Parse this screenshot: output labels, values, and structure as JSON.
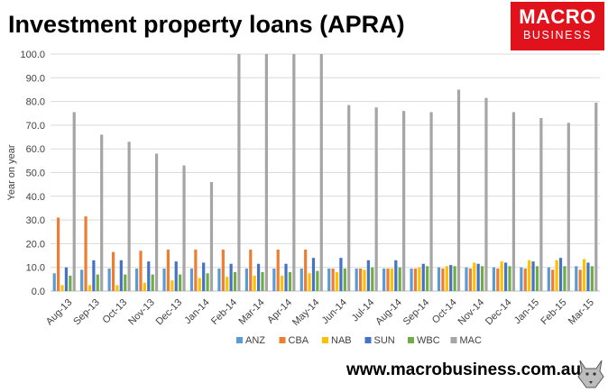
{
  "header": {
    "title": "Investment property loans (APRA)",
    "logo_top": "MACRO",
    "logo_bottom": "BUSINESS",
    "url": "www.macrobusiness.com.au"
  },
  "chart_data": {
    "type": "bar",
    "title": "Investment property loans (APRA)",
    "xlabel": "",
    "ylabel": "Year on year",
    "ylim": [
      0,
      100
    ],
    "ytick_labels": [
      "0.0",
      "10.0",
      "20.0",
      "30.0",
      "40.0",
      "50.0",
      "60.0",
      "70.0",
      "80.0",
      "90.0",
      "100.0"
    ],
    "grid": true,
    "legend_position": "bottom",
    "categories": [
      "Aug-13",
      "Sep-13",
      "Oct-13",
      "Nov-13",
      "Dec-13",
      "Jan-14",
      "Feb-14",
      "Mar-14",
      "Apr-14",
      "May-14",
      "Jun-14",
      "Jul-14",
      "Aug-14",
      "Sep-14",
      "Oct-14",
      "Nov-14",
      "Dec-14",
      "Jan-15",
      "Feb-15",
      "Mar-15"
    ],
    "series": [
      {
        "name": "ANZ",
        "color": "#5b9bd5",
        "values": [
          7.5,
          9,
          9.5,
          9.5,
          9.5,
          9.5,
          9.5,
          9.5,
          9.5,
          9.5,
          9.5,
          9.5,
          9.5,
          9.5,
          10,
          10,
          10,
          10,
          10,
          10.5
        ]
      },
      {
        "name": "CBA",
        "color": "#ed7d31",
        "values": [
          31,
          31.5,
          16.5,
          17,
          17.5,
          17.5,
          17.5,
          17.5,
          17.5,
          17.5,
          9.5,
          9.5,
          9.5,
          9.5,
          9.5,
          9.5,
          9.5,
          9.5,
          9,
          9
        ]
      },
      {
        "name": "NAB",
        "color": "#ffc000",
        "values": [
          2.5,
          2.5,
          2.5,
          3.5,
          4.5,
          5.5,
          6,
          6.5,
          6.5,
          7.5,
          8,
          9,
          9.5,
          10,
          10.5,
          12,
          12.5,
          13,
          13,
          13.5
        ]
      },
      {
        "name": "SUN",
        "color": "#4472c4",
        "values": [
          10,
          13,
          13,
          12.5,
          12.5,
          12,
          11.5,
          11.5,
          11.5,
          14,
          14,
          13,
          13,
          11.5,
          11,
          11.5,
          12,
          12.5,
          14,
          12
        ]
      },
      {
        "name": "WBC",
        "color": "#70ad47",
        "values": [
          6.5,
          7,
          7,
          7,
          7,
          7.5,
          8,
          8,
          8,
          8.5,
          9.5,
          10,
          10,
          10.5,
          10.5,
          10.5,
          10.5,
          10.5,
          10.5,
          10.5
        ]
      },
      {
        "name": "MAC",
        "color": "#a5a5a5",
        "values": [
          75.5,
          66,
          63,
          58,
          53,
          46,
          100,
          100,
          100,
          100,
          78.5,
          77.5,
          76,
          75.5,
          85,
          81.5,
          75.5,
          73,
          71,
          79.5
        ]
      }
    ]
  }
}
